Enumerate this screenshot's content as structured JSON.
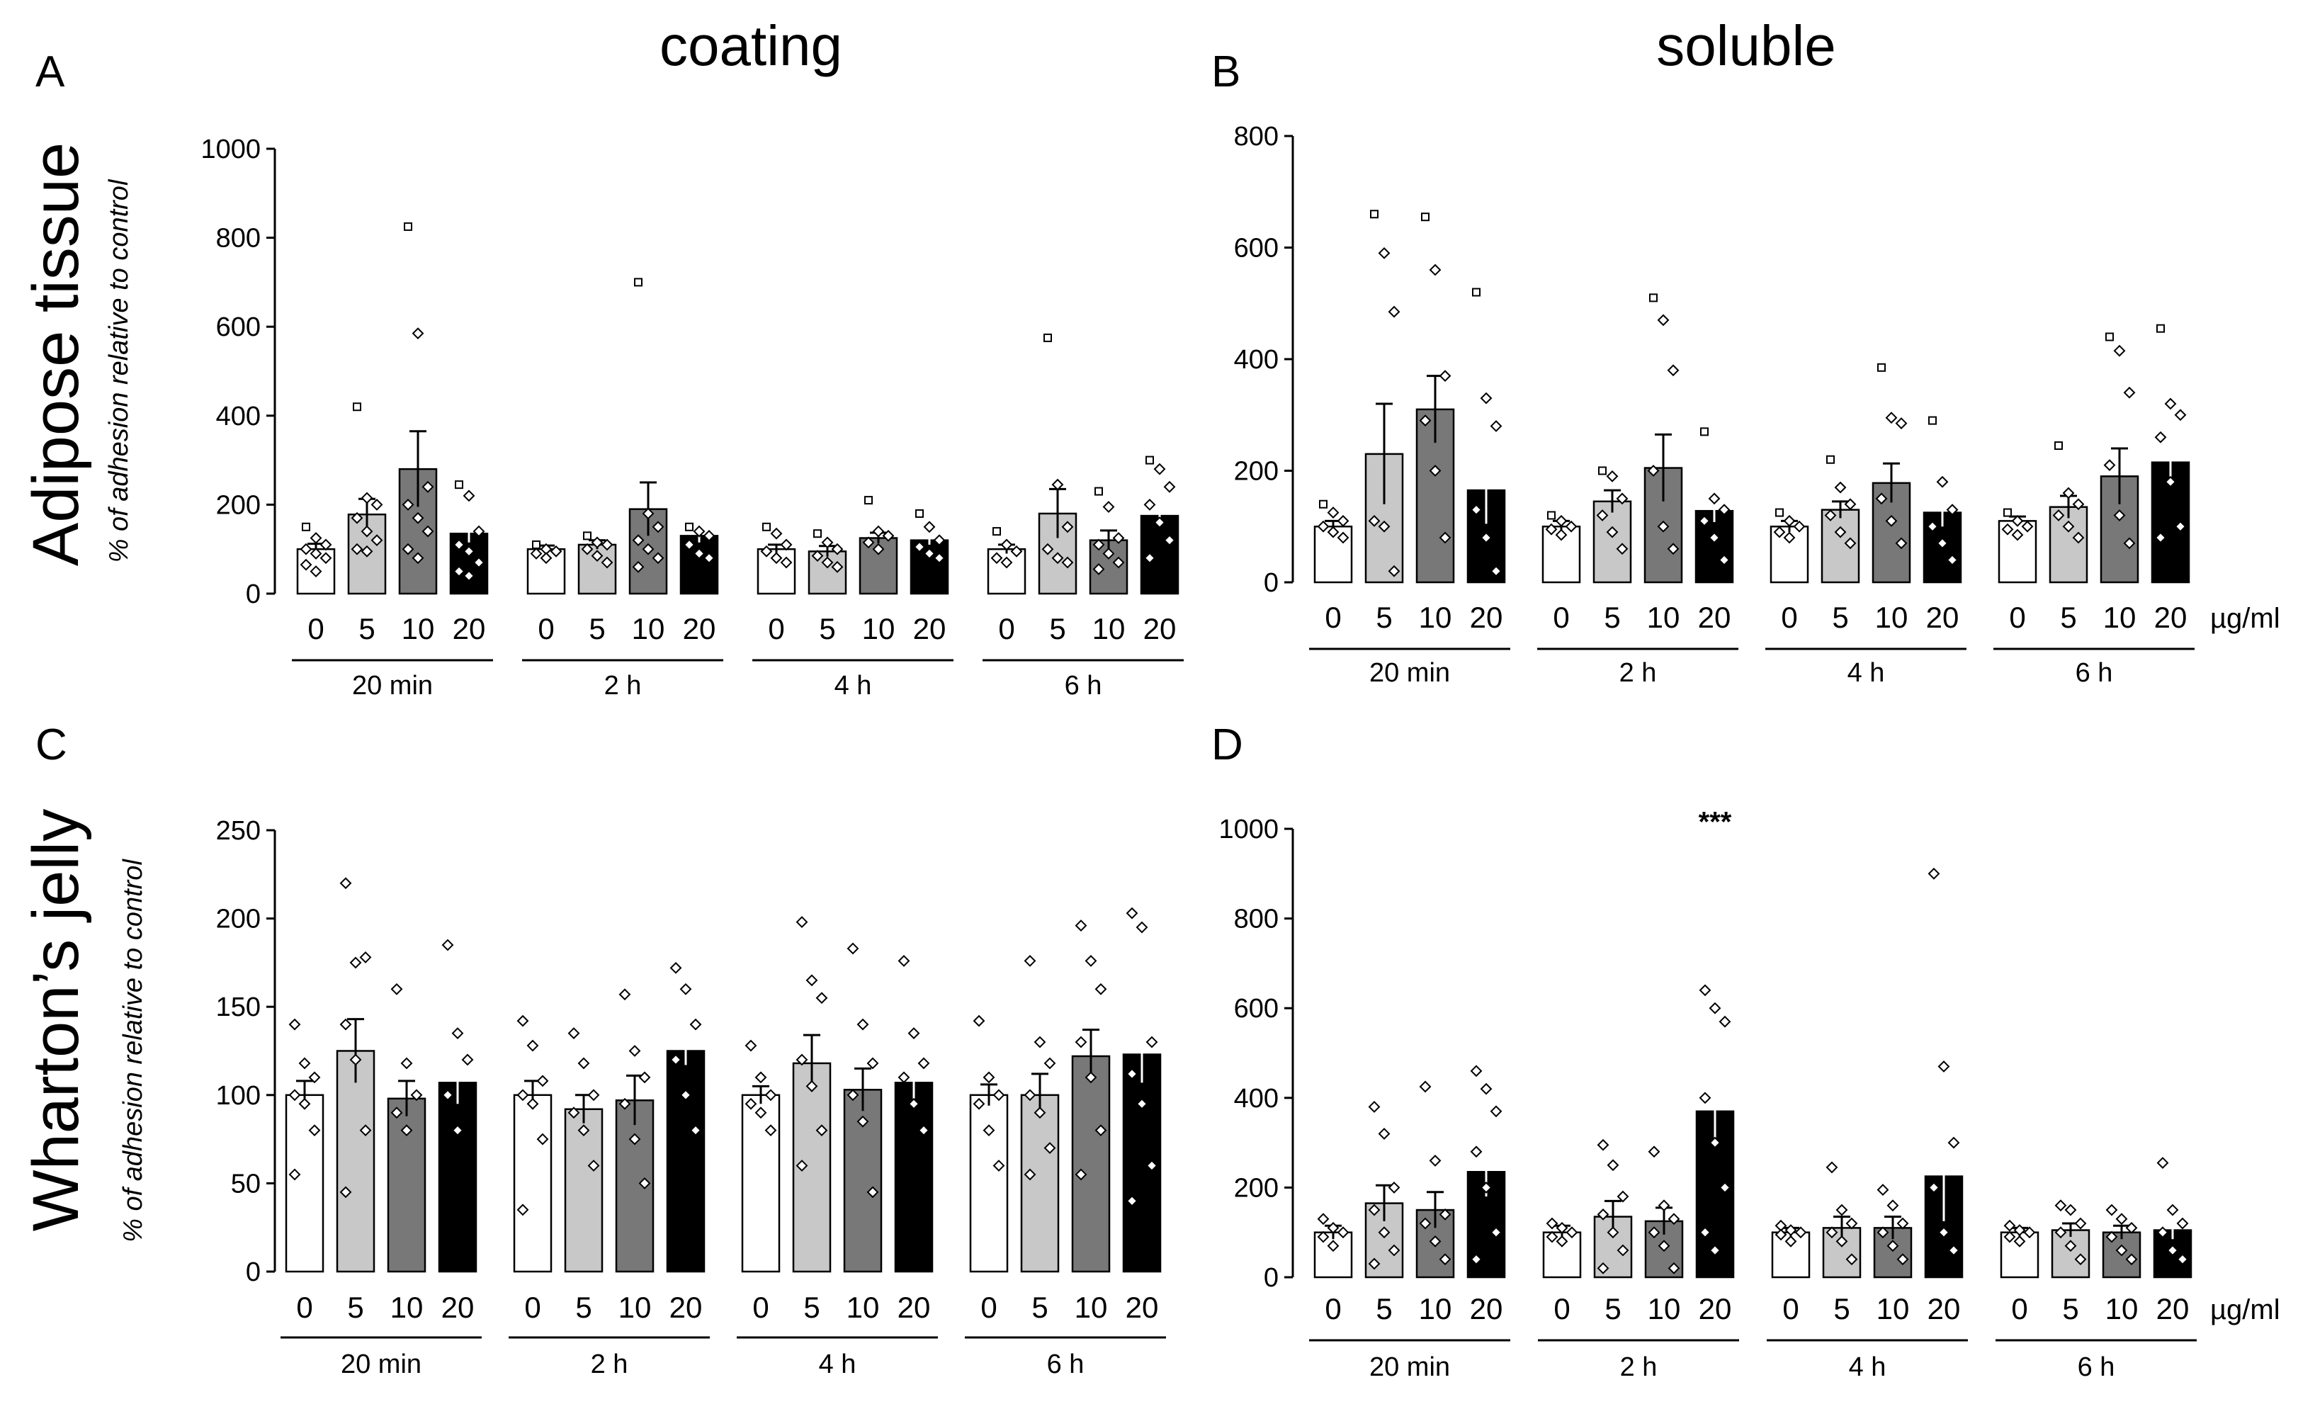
{
  "column_titles": [
    "coating",
    "soluble"
  ],
  "row_titles": [
    "Adipose tissue",
    "Wharton’s jelly"
  ],
  "chart_data": [
    {
      "panel": "A",
      "type": "bar",
      "ylabel": "% of adhesion relative to control",
      "ylim": [
        0,
        1000
      ],
      "yticks": [
        "0",
        "200",
        "400",
        "600",
        "800",
        "1000"
      ],
      "doses": [
        "0",
        "5",
        "10",
        "20"
      ],
      "groups": [
        "20 min",
        "2 h",
        "4 h",
        "6 h"
      ],
      "unit": "",
      "colors": [
        "#ffffff",
        "#c8c8c8",
        "#787878",
        "#000000"
      ],
      "means": [
        [
          100,
          178,
          280,
          135
        ],
        [
          100,
          110,
          190,
          130
        ],
        [
          100,
          95,
          125,
          120
        ],
        [
          100,
          180,
          120,
          175
        ]
      ],
      "sem": [
        [
          12,
          35,
          85,
          20
        ],
        [
          8,
          10,
          60,
          15
        ],
        [
          10,
          12,
          12,
          10
        ],
        [
          10,
          55,
          22,
          25
        ]
      ],
      "points": [
        [
          [
            150,
            125,
            110,
            100,
            90,
            80,
            65,
            50
          ],
          [
            420,
            215,
            200,
            170,
            140,
            120,
            100,
            95
          ],
          [
            825,
            585,
            240,
            200,
            170,
            140,
            100,
            80
          ],
          [
            245,
            220,
            140,
            110,
            95,
            70,
            50,
            40
          ]
        ],
        [
          [
            110,
            100,
            95,
            90,
            80
          ],
          [
            130,
            115,
            110,
            100,
            85,
            70
          ],
          [
            700,
            180,
            150,
            120,
            100,
            80,
            60
          ],
          [
            150,
            140,
            130,
            110,
            90,
            80
          ]
        ],
        [
          [
            150,
            135,
            110,
            95,
            80,
            70
          ],
          [
            135,
            115,
            100,
            85,
            70,
            60
          ],
          [
            210,
            140,
            130,
            115,
            100
          ],
          [
            180,
            150,
            120,
            105,
            90,
            80
          ]
        ],
        [
          [
            140,
            110,
            95,
            80,
            70
          ],
          [
            575,
            245,
            150,
            100,
            80,
            70
          ],
          [
            230,
            195,
            125,
            110,
            90,
            70,
            55
          ],
          [
            300,
            280,
            240,
            200,
            160,
            120,
            80
          ]
        ]
      ]
    },
    {
      "panel": "B",
      "type": "bar",
      "ylabel": "",
      "ylim": [
        0,
        800
      ],
      "yticks": [
        "0",
        "200",
        "400",
        "600",
        "800"
      ],
      "doses": [
        "0",
        "5",
        "10",
        "20"
      ],
      "groups": [
        "20 min",
        "2 h",
        "4 h",
        "6 h"
      ],
      "unit": "µg/ml",
      "colors": [
        "#ffffff",
        "#c8c8c8",
        "#787878",
        "#000000"
      ],
      "means": [
        [
          100,
          230,
          310,
          165
        ],
        [
          100,
          145,
          205,
          128
        ],
        [
          100,
          130,
          178,
          125
        ],
        [
          110,
          135,
          190,
          215
        ]
      ],
      "sem": [
        [
          10,
          90,
          60,
          60
        ],
        [
          10,
          20,
          60,
          20
        ],
        [
          10,
          15,
          35,
          25
        ],
        [
          8,
          20,
          50,
          40
        ]
      ],
      "points": [
        [
          [
            140,
            125,
            110,
            100,
            90,
            80
          ],
          [
            660,
            590,
            485,
            110,
            100,
            20
          ],
          [
            655,
            560,
            370,
            290,
            200,
            80
          ],
          [
            520,
            330,
            280,
            130,
            80,
            20
          ]
        ],
        [
          [
            120,
            110,
            100,
            95,
            85
          ],
          [
            200,
            190,
            150,
            120,
            90,
            60
          ],
          [
            510,
            470,
            380,
            200,
            100,
            60
          ],
          [
            270,
            150,
            130,
            110,
            80,
            40
          ]
        ],
        [
          [
            125,
            110,
            100,
            90,
            80
          ],
          [
            220,
            170,
            140,
            120,
            90,
            70
          ],
          [
            385,
            295,
            285,
            150,
            110,
            70
          ],
          [
            290,
            180,
            130,
            100,
            70,
            40
          ]
        ],
        [
          [
            125,
            110,
            100,
            95,
            85
          ],
          [
            245,
            160,
            140,
            120,
            100,
            80
          ],
          [
            440,
            415,
            340,
            210,
            120,
            70
          ],
          [
            455,
            320,
            300,
            260,
            180,
            100,
            80
          ]
        ]
      ]
    },
    {
      "panel": "C",
      "type": "bar",
      "ylabel": "% of adhesion relative to control",
      "ylim": [
        0,
        250
      ],
      "yticks": [
        "0",
        "50",
        "100",
        "150",
        "200",
        "250"
      ],
      "doses": [
        "0",
        "5",
        "10",
        "20"
      ],
      "groups": [
        "20 min",
        "2 h",
        "4 h",
        "6 h"
      ],
      "unit": "",
      "colors": [
        "#ffffff",
        "#c8c8c8",
        "#787878",
        "#000000"
      ],
      "means": [
        [
          100,
          125,
          98,
          107
        ],
        [
          100,
          92,
          97,
          125
        ],
        [
          100,
          118,
          103,
          107
        ],
        [
          100,
          100,
          122,
          123
        ]
      ],
      "sem": [
        [
          8,
          18,
          10,
          12
        ],
        [
          8,
          8,
          14,
          8
        ],
        [
          5,
          16,
          12,
          10
        ],
        [
          6,
          12,
          15,
          16
        ]
      ],
      "points": [
        [
          [
            140,
            118,
            110,
            100,
            95,
            80,
            55
          ],
          [
            220,
            175,
            178,
            140,
            120,
            80,
            45
          ],
          [
            160,
            118,
            100,
            90,
            80
          ],
          [
            185,
            135,
            120,
            100,
            80
          ]
        ],
        [
          [
            142,
            128,
            108,
            100,
            95,
            75,
            35
          ],
          [
            135,
            118,
            100,
            90,
            80,
            60
          ],
          [
            157,
            125,
            110,
            95,
            75,
            50
          ],
          [
            172,
            160,
            140,
            120,
            100,
            80
          ]
        ],
        [
          [
            128,
            110,
            100,
            95,
            90,
            80
          ],
          [
            198,
            165,
            155,
            120,
            105,
            80,
            60
          ],
          [
            183,
            140,
            118,
            100,
            85,
            45
          ],
          [
            176,
            135,
            118,
            110,
            95,
            80
          ]
        ],
        [
          [
            142,
            110,
            100,
            95,
            80,
            60
          ],
          [
            176,
            130,
            118,
            100,
            90,
            70,
            55
          ],
          [
            196,
            176,
            160,
            130,
            110,
            80,
            55
          ],
          [
            203,
            195,
            130,
            112,
            95,
            60,
            40
          ]
        ]
      ]
    },
    {
      "panel": "D",
      "type": "bar",
      "ylabel": "",
      "ylim": [
        0,
        1000
      ],
      "yticks": [
        "0",
        "200",
        "400",
        "600",
        "800",
        "1000"
      ],
      "doses": [
        "0",
        "5",
        "10",
        "20"
      ],
      "groups": [
        "20 min",
        "2 h",
        "4 h",
        "6 h"
      ],
      "unit": "µg/ml",
      "colors": [
        "#ffffff",
        "#c8c8c8",
        "#787878",
        "#000000"
      ],
      "means": [
        [
          100,
          165,
          150,
          235
        ],
        [
          100,
          135,
          125,
          370
        ],
        [
          100,
          110,
          110,
          225
        ],
        [
          100,
          105,
          100,
          105
        ]
      ],
      "sem": [
        [
          15,
          40,
          40,
          55
        ],
        [
          15,
          35,
          30,
          75
        ],
        [
          10,
          25,
          25,
          100
        ],
        [
          10,
          15,
          15,
          20
        ]
      ],
      "points": [
        [
          [
            130,
            110,
            100,
            90,
            70
          ],
          [
            380,
            320,
            200,
            150,
            100,
            60,
            30
          ],
          [
            425,
            260,
            140,
            120,
            80,
            40
          ],
          [
            460,
            420,
            370,
            280,
            200,
            100,
            40
          ]
        ],
        [
          [
            120,
            110,
            100,
            90,
            80
          ],
          [
            295,
            250,
            180,
            140,
            100,
            60,
            20
          ],
          [
            280,
            160,
            130,
            100,
            70,
            20
          ],
          [
            640,
            600,
            570,
            400,
            300,
            200,
            100,
            60
          ]
        ],
        [
          [
            115,
            105,
            100,
            95,
            80
          ],
          [
            245,
            150,
            120,
            100,
            80,
            40
          ],
          [
            195,
            160,
            120,
            100,
            70,
            40
          ],
          [
            900,
            470,
            300,
            200,
            100,
            60
          ]
        ],
        [
          [
            115,
            105,
            100,
            90,
            80
          ],
          [
            160,
            150,
            120,
            100,
            70,
            40
          ],
          [
            150,
            130,
            110,
            90,
            60,
            40
          ],
          [
            255,
            150,
            120,
            100,
            60,
            40
          ]
        ]
      ],
      "annotation": {
        "text": "***",
        "group": 1,
        "dose": 3
      }
    }
  ]
}
